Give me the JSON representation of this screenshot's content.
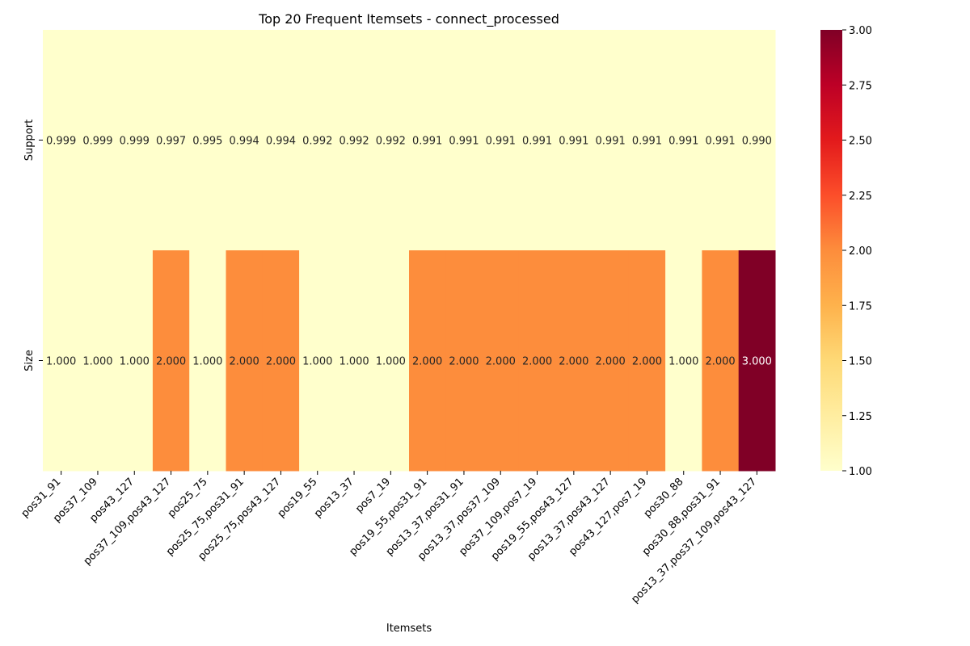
{
  "chart_data": {
    "type": "heatmap",
    "title": "Top 20 Frequent Itemsets - connect_processed",
    "xlabel": "Itemsets",
    "ylabel": "",
    "rows": [
      "Support",
      "Size"
    ],
    "columns": [
      "pos31_91",
      "pos37_109",
      "pos43_127",
      "pos37_109,pos43_127",
      "pos25_75",
      "pos25_75,pos31_91",
      "pos25_75,pos43_127",
      "pos19_55",
      "pos13_37",
      "pos7_19",
      "pos19_55,pos31_91",
      "pos13_37,pos31_91",
      "pos13_37,pos37_109",
      "pos37_109,pos7_19",
      "pos19_55,pos43_127",
      "pos13_37,pos43_127",
      "pos43_127,pos7_19",
      "pos30_88",
      "pos30_88,pos31_91",
      "pos13_37,pos37_109,pos43_127"
    ],
    "values": [
      [
        0.999,
        0.999,
        0.999,
        0.997,
        0.995,
        0.994,
        0.994,
        0.992,
        0.992,
        0.992,
        0.991,
        0.991,
        0.991,
        0.991,
        0.991,
        0.991,
        0.991,
        0.991,
        0.991,
        0.99
      ],
      [
        1.0,
        1.0,
        1.0,
        2.0,
        1.0,
        2.0,
        2.0,
        1.0,
        1.0,
        1.0,
        2.0,
        2.0,
        2.0,
        2.0,
        2.0,
        2.0,
        2.0,
        1.0,
        2.0,
        3.0
      ]
    ],
    "annotations": [
      [
        "0.999",
        "0.999",
        "0.999",
        "0.997",
        "0.995",
        "0.994",
        "0.994",
        "0.992",
        "0.992",
        "0.992",
        "0.991",
        "0.991",
        "0.991",
        "0.991",
        "0.991",
        "0.991",
        "0.991",
        "0.991",
        "0.991",
        "0.990"
      ],
      [
        "1.000",
        "1.000",
        "1.000",
        "2.000",
        "1.000",
        "2.000",
        "2.000",
        "1.000",
        "1.000",
        "1.000",
        "2.000",
        "2.000",
        "2.000",
        "2.000",
        "2.000",
        "2.000",
        "2.000",
        "1.000",
        "2.000",
        "3.000"
      ]
    ],
    "colormap": "YlOrRd",
    "vmin": 1.0,
    "vmax": 3.0,
    "colorbar_ticks": [
      "1.00",
      "1.25",
      "1.50",
      "1.75",
      "2.00",
      "2.25",
      "2.50",
      "2.75",
      "3.00"
    ],
    "colors": {
      "low": "#ffffcc",
      "mid": "#fd8d3c",
      "high": "#800026"
    }
  }
}
